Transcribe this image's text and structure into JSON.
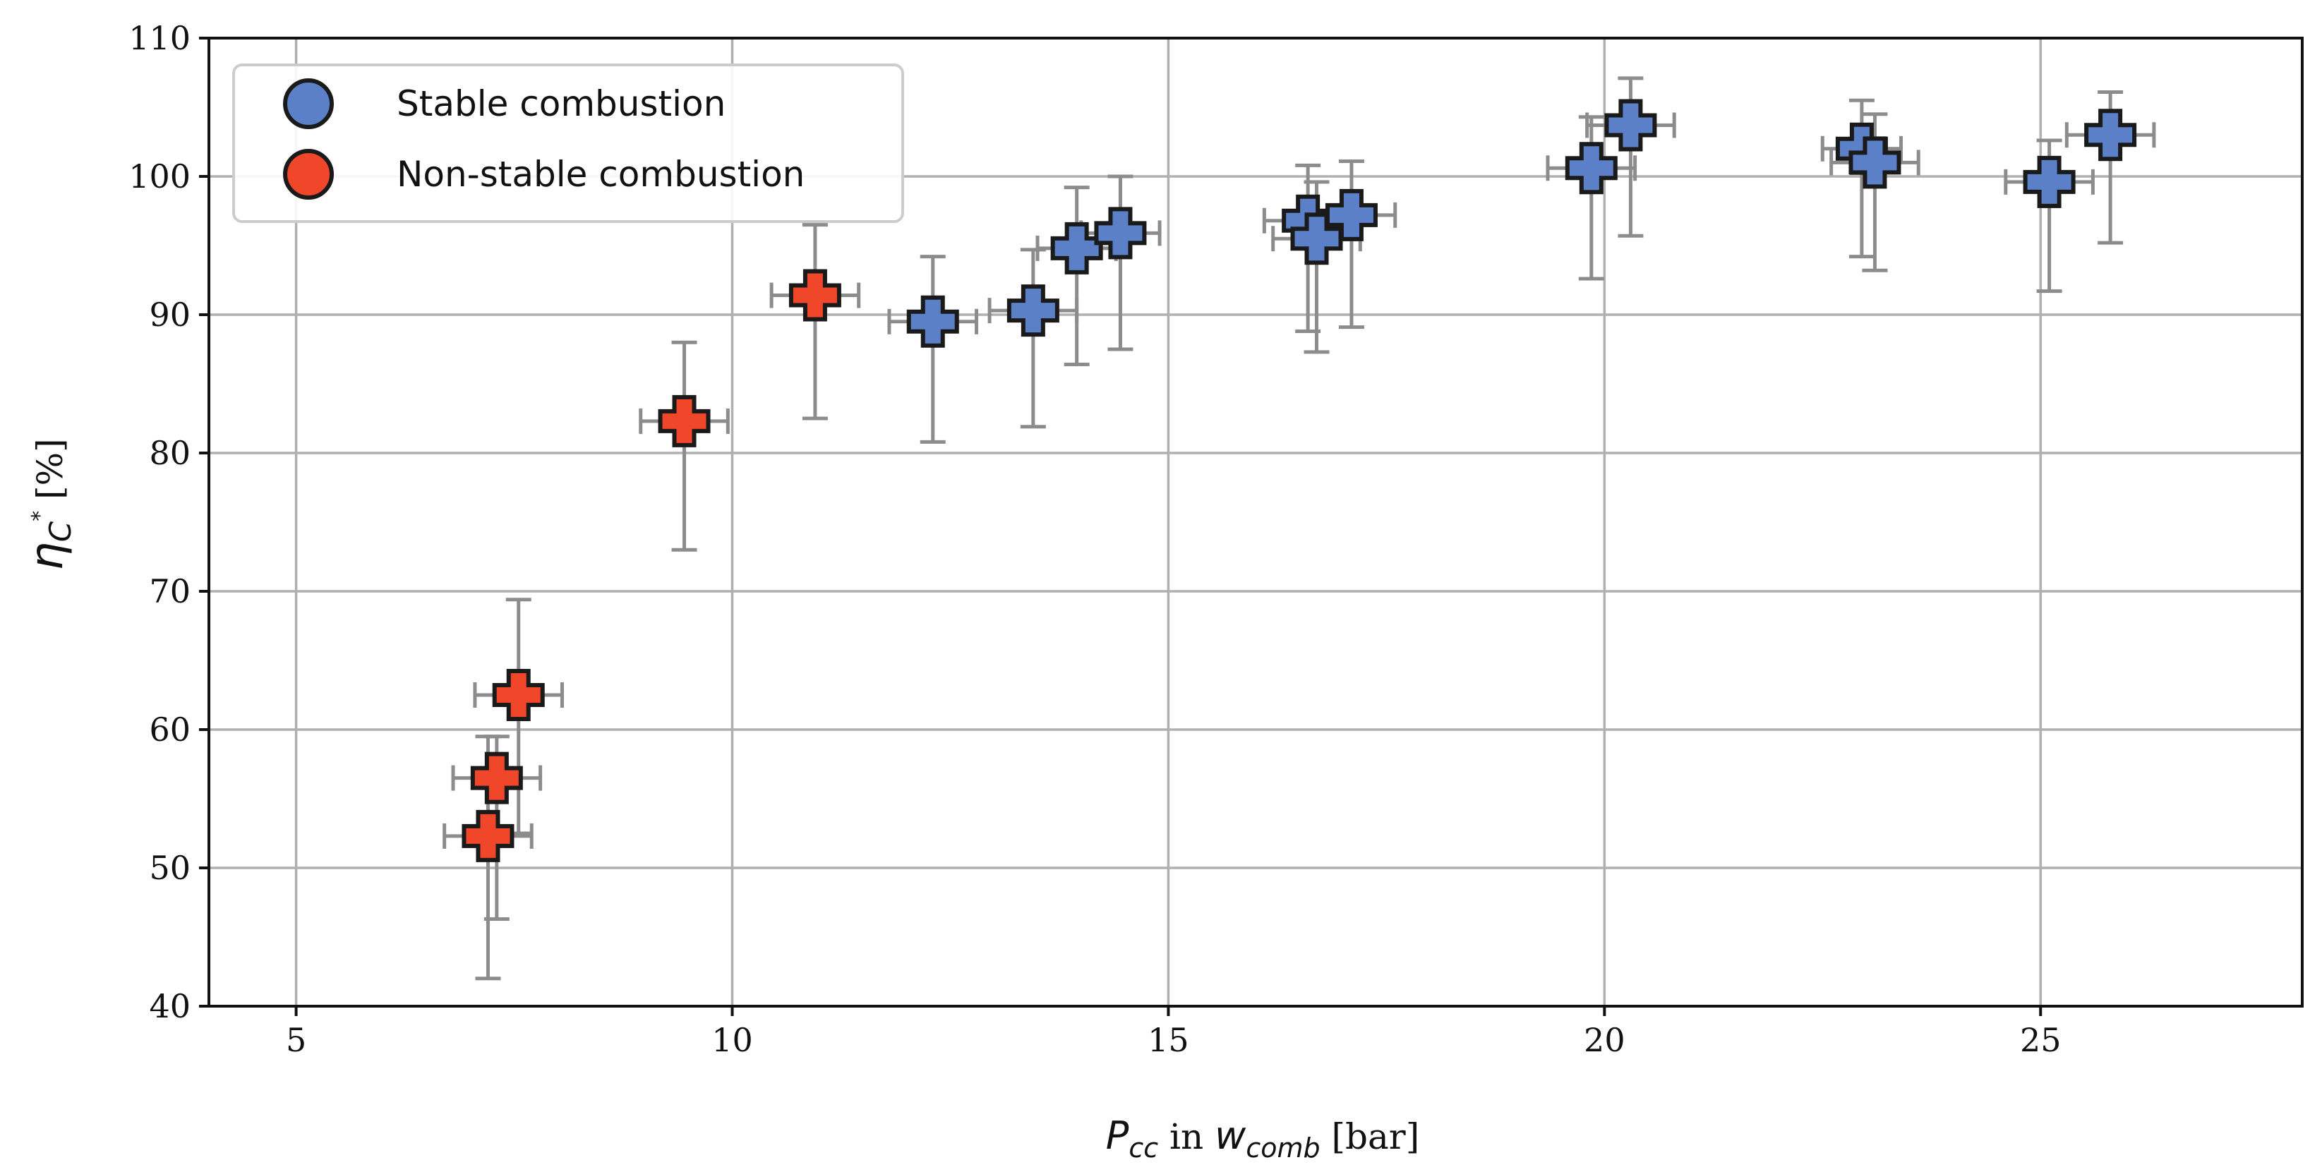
{
  "chart_data": {
    "type": "scatter",
    "xlabel_parts": [
      "P",
      "cc",
      " in ",
      "w",
      "comb",
      " [bar]"
    ],
    "ylabel_parts": [
      "η",
      "C",
      "*",
      " [%]"
    ],
    "xlim": [
      4,
      28
    ],
    "ylim": [
      40,
      110
    ],
    "xticks": [
      5,
      10,
      15,
      20,
      25
    ],
    "yticks": [
      40,
      50,
      60,
      70,
      80,
      90,
      100,
      110
    ],
    "grid": true,
    "legend_position": "top-left",
    "series": [
      {
        "name": "Stable combustion",
        "color": "#5b80c8",
        "points": [
          {
            "x": 12.3,
            "y": 89.5,
            "xerr": 0.5,
            "yerr_low": 8.7,
            "yerr_high": 4.7
          },
          {
            "x": 13.45,
            "y": 90.3,
            "xerr": 0.5,
            "yerr_low": 8.4,
            "yerr_high": 4.4
          },
          {
            "x": 13.95,
            "y": 94.8,
            "xerr": 0.45,
            "yerr_low": 8.4,
            "yerr_high": 4.4
          },
          {
            "x": 14.45,
            "y": 95.9,
            "xerr": 0.45,
            "yerr_low": 8.4,
            "yerr_high": 4.1
          },
          {
            "x": 16.6,
            "y": 96.8,
            "xerr": 0.5,
            "yerr_low": 8.0,
            "yerr_high": 4.0
          },
          {
            "x": 16.7,
            "y": 95.5,
            "xerr": 0.5,
            "yerr_low": 8.2,
            "yerr_high": 4.1
          },
          {
            "x": 17.1,
            "y": 97.2,
            "xerr": 0.5,
            "yerr_low": 8.1,
            "yerr_high": 3.9
          },
          {
            "x": 19.85,
            "y": 100.6,
            "xerr": 0.5,
            "yerr_low": 8.0,
            "yerr_high": 3.7
          },
          {
            "x": 20.3,
            "y": 103.7,
            "xerr": 0.5,
            "yerr_low": 8.0,
            "yerr_high": 3.4
          },
          {
            "x": 22.95,
            "y": 102.0,
            "xerr": 0.45,
            "yerr_low": 7.8,
            "yerr_high": 3.5
          },
          {
            "x": 23.1,
            "y": 101.0,
            "xerr": 0.5,
            "yerr_low": 7.8,
            "yerr_high": 3.5
          },
          {
            "x": 25.1,
            "y": 99.6,
            "xerr": 0.5,
            "yerr_low": 7.9,
            "yerr_high": 3.0
          },
          {
            "x": 25.8,
            "y": 103.0,
            "xerr": 0.5,
            "yerr_low": 7.8,
            "yerr_high": 3.1
          }
        ]
      },
      {
        "name": "Non-stable combustion",
        "color": "#f0472a",
        "points": [
          {
            "x": 7.2,
            "y": 52.3,
            "xerr": 0.5,
            "yerr_low": 10.3,
            "yerr_high": 7.2
          },
          {
            "x": 7.3,
            "y": 56.5,
            "xerr": 0.5,
            "yerr_low": 10.2,
            "yerr_high": 3.0
          },
          {
            "x": 7.55,
            "y": 62.5,
            "xerr": 0.5,
            "yerr_low": 10.0,
            "yerr_high": 6.9
          },
          {
            "x": 9.45,
            "y": 82.3,
            "xerr": 0.5,
            "yerr_low": 9.3,
            "yerr_high": 5.7
          },
          {
            "x": 10.95,
            "y": 91.4,
            "xerr": 0.5,
            "yerr_low": 8.9,
            "yerr_high": 5.1
          }
        ]
      }
    ]
  }
}
